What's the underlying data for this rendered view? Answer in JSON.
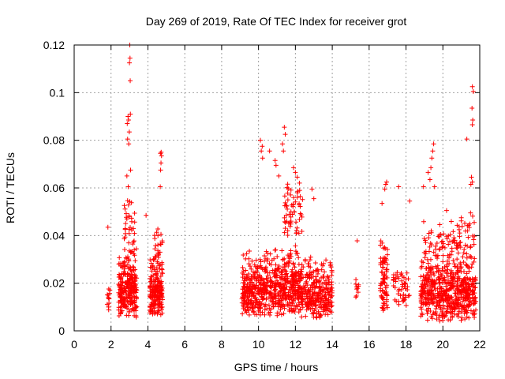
{
  "chart_data": {
    "type": "scatter",
    "title": "Day 269 of 2019, Rate Of TEC Index for receiver grot",
    "xlabel": "GPS time / hours",
    "ylabel": "ROTI / TECUs",
    "xlim": [
      0,
      22
    ],
    "ylim": [
      0,
      0.12
    ],
    "xticks": [
      "0",
      "2",
      "4",
      "6",
      "8",
      "10",
      "12",
      "14",
      "16",
      "18",
      "20",
      "22"
    ],
    "yticks": [
      "0",
      "0.02",
      "0.04",
      "0.06",
      "0.08",
      "0.1",
      "0.12"
    ],
    "grid": true,
    "marker": "+",
    "color": "#ff0000",
    "clusters": [
      {
        "x": [
          1.75,
          1.95
        ],
        "y": [
          0.008,
          0.021
        ],
        "n": 12
      },
      {
        "x": [
          2.4,
          3.4
        ],
        "y": [
          0.005,
          0.035
        ],
        "n": 260
      },
      {
        "x": [
          2.7,
          3.3
        ],
        "y": [
          0.03,
          0.06
        ],
        "n": 40
      },
      {
        "x": [
          4.1,
          4.8
        ],
        "y": [
          0.006,
          0.033
        ],
        "n": 200
      },
      {
        "x": [
          4.3,
          4.8
        ],
        "y": [
          0.03,
          0.045
        ],
        "n": 20
      },
      {
        "x": [
          9.1,
          10.3
        ],
        "y": [
          0.006,
          0.034
        ],
        "n": 240
      },
      {
        "x": [
          10.3,
          12.3
        ],
        "y": [
          0.006,
          0.036
        ],
        "n": 400
      },
      {
        "x": [
          12.3,
          14.0
        ],
        "y": [
          0.005,
          0.032
        ],
        "n": 300
      },
      {
        "x": [
          11.4,
          12.4
        ],
        "y": [
          0.04,
          0.065
        ],
        "n": 60
      },
      {
        "x": [
          15.25,
          15.45
        ],
        "y": [
          0.01,
          0.025
        ],
        "n": 10
      },
      {
        "x": [
          16.6,
          17.0
        ],
        "y": [
          0.008,
          0.04
        ],
        "n": 80
      },
      {
        "x": [
          17.3,
          18.2
        ],
        "y": [
          0.01,
          0.03
        ],
        "n": 50
      },
      {
        "x": [
          18.8,
          21.8
        ],
        "y": [
          0.004,
          0.035
        ],
        "n": 600
      },
      {
        "x": [
          18.9,
          21.8
        ],
        "y": [
          0.03,
          0.05
        ],
        "n": 90
      }
    ],
    "points": [
      [
        1.83,
        0.0435
      ],
      [
        3.02,
        0.12
      ],
      [
        3.03,
        0.1145
      ],
      [
        3.0,
        0.1125
      ],
      [
        3.04,
        0.105
      ],
      [
        2.92,
        0.09
      ],
      [
        2.95,
        0.0885
      ],
      [
        2.88,
        0.087
      ],
      [
        3.05,
        0.091
      ],
      [
        2.99,
        0.0835
      ],
      [
        2.9,
        0.0805
      ],
      [
        2.96,
        0.0785
      ],
      [
        2.86,
        0.065
      ],
      [
        2.93,
        0.0605
      ],
      [
        3.06,
        0.0675
      ],
      [
        4.72,
        0.075
      ],
      [
        4.74,
        0.0735
      ],
      [
        4.68,
        0.0745
      ],
      [
        4.71,
        0.0705
      ],
      [
        4.69,
        0.0675
      ],
      [
        4.67,
        0.0605
      ],
      [
        3.9,
        0.0485
      ],
      [
        10.1,
        0.08
      ],
      [
        10.2,
        0.0775
      ],
      [
        10.15,
        0.0755
      ],
      [
        10.22,
        0.0725
      ],
      [
        10.6,
        0.0755
      ],
      [
        10.9,
        0.0715
      ],
      [
        10.95,
        0.0695
      ],
      [
        11.4,
        0.0855
      ],
      [
        11.45,
        0.0825
      ],
      [
        11.3,
        0.0785
      ],
      [
        11.35,
        0.0755
      ],
      [
        11.9,
        0.0685
      ],
      [
        12.0,
        0.0665
      ],
      [
        12.1,
        0.0645
      ],
      [
        11.1,
        0.065
      ],
      [
        12.9,
        0.0595
      ],
      [
        13.0,
        0.0555
      ],
      [
        15.35,
        0.0378
      ],
      [
        16.9,
        0.0615
      ],
      [
        16.95,
        0.0625
      ],
      [
        16.85,
        0.0595
      ],
      [
        16.7,
        0.0535
      ],
      [
        17.6,
        0.0605
      ],
      [
        18.2,
        0.0545
      ],
      [
        18.95,
        0.0605
      ],
      [
        19.2,
        0.0665
      ],
      [
        19.5,
        0.0785
      ],
      [
        19.45,
        0.0755
      ],
      [
        19.4,
        0.0725
      ],
      [
        19.35,
        0.0685
      ],
      [
        19.3,
        0.0635
      ],
      [
        19.55,
        0.0605
      ],
      [
        20.2,
        0.0505
      ],
      [
        21.0,
        0.0475
      ],
      [
        21.3,
        0.0805
      ],
      [
        21.6,
        0.1025
      ],
      [
        21.65,
        0.1005
      ],
      [
        21.58,
        0.0935
      ],
      [
        21.62,
        0.0885
      ],
      [
        21.6,
        0.0865
      ],
      [
        21.55,
        0.0645
      ],
      [
        21.6,
        0.0625
      ],
      [
        21.52,
        0.0615
      ],
      [
        21.5,
        0.0495
      ],
      [
        21.7,
        0.0455
      ]
    ]
  }
}
